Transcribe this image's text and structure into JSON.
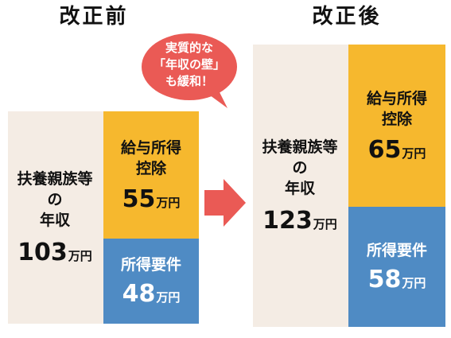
{
  "before": {
    "heading": "改正前",
    "left_label_lines": [
      "扶養親族等",
      "の",
      "年収"
    ],
    "total": {
      "num": "103",
      "unit": "万円"
    },
    "deduction": {
      "label_lines": [
        "給与所得",
        "控除"
      ],
      "num": "55",
      "unit": "万円"
    },
    "income": {
      "label": "所得要件",
      "num": "48",
      "unit": "万円"
    }
  },
  "after": {
    "heading": "改正後",
    "left_label_lines": [
      "扶養親族等",
      "の",
      "年収"
    ],
    "total": {
      "num": "123",
      "unit": "万円"
    },
    "deduction": {
      "label_lines": [
        "給与所得",
        "控除"
      ],
      "num": "65",
      "unit": "万円"
    },
    "income": {
      "label": "所得要件",
      "num": "58",
      "unit": "万円"
    }
  },
  "bubble": {
    "lines": [
      "実質的な",
      "「年収の壁」",
      "も緩和！"
    ]
  },
  "colors": {
    "panel_bg": "#f4ece4",
    "orange": "#f6b82e",
    "blue": "#4f8bc4",
    "accent_red": "#ea5a55"
  },
  "icons": {
    "arrow": "right-arrow-icon",
    "bubble": "speech-bubble-icon"
  }
}
